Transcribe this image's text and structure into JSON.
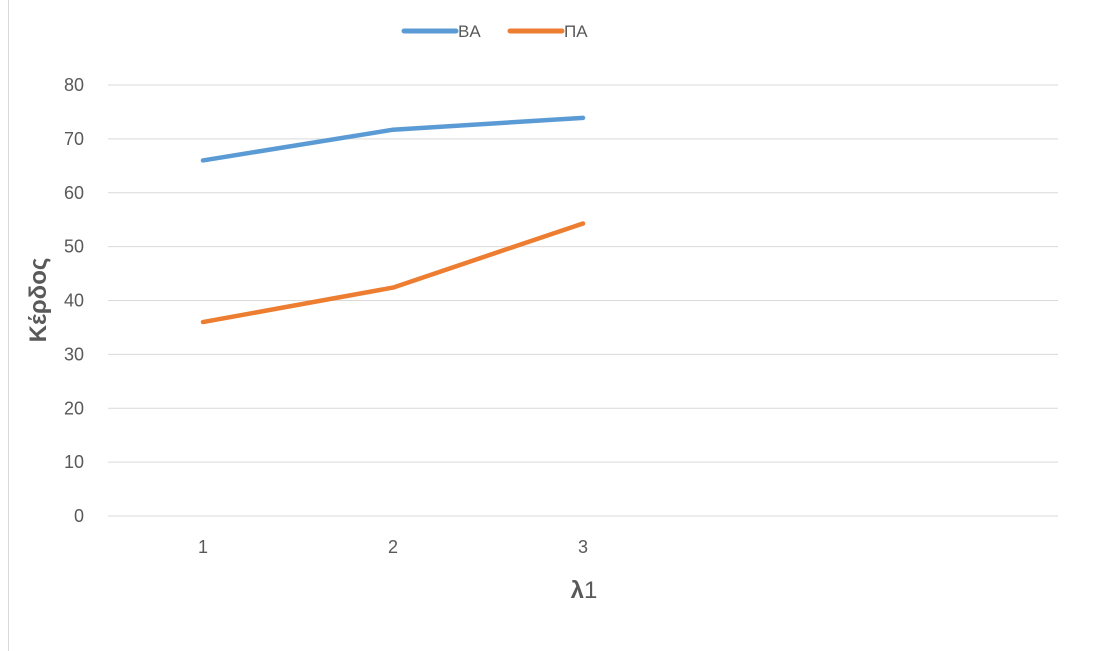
{
  "chart_data": {
    "type": "line",
    "x": [
      1,
      2,
      3
    ],
    "categories": [
      "1",
      "2",
      "3",
      "",
      ""
    ],
    "series": [
      {
        "name": "BA",
        "values": [
          66,
          71.7,
          73.9
        ],
        "color": "#5B9BD5"
      },
      {
        "name": "ΠΑ",
        "values": [
          36,
          42.4,
          54.3
        ],
        "color": "#ED7D31"
      }
    ],
    "title": "",
    "xlabel_bold": "λ",
    "xlabel_rest": "1",
    "ylabel": "Κέρδος",
    "ylim": [
      0,
      80
    ],
    "yticks": [
      0,
      10,
      20,
      30,
      40,
      50,
      60,
      70,
      80
    ],
    "grid": true,
    "legend_position": "top-center",
    "gridline_color": "#d9d9d9",
    "text_color": "#595959"
  }
}
